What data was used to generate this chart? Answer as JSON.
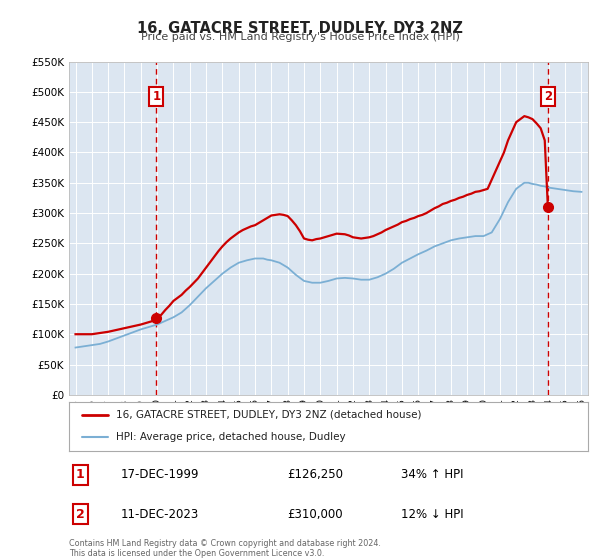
{
  "title": "16, GATACRE STREET, DUDLEY, DY3 2NZ",
  "subtitle": "Price paid vs. HM Land Registry's House Price Index (HPI)",
  "background_color": "#ffffff",
  "plot_bg_color": "#dce6f1",
  "grid_color": "#ffffff",
  "ylim": [
    0,
    550000
  ],
  "xlim_start": 1994.6,
  "xlim_end": 2026.4,
  "yticks": [
    0,
    50000,
    100000,
    150000,
    200000,
    250000,
    300000,
    350000,
    400000,
    450000,
    500000,
    550000
  ],
  "ytick_labels": [
    "£0",
    "£50K",
    "£100K",
    "£150K",
    "£200K",
    "£250K",
    "£300K",
    "£350K",
    "£400K",
    "£450K",
    "£500K",
    "£550K"
  ],
  "xticks": [
    1995,
    1996,
    1997,
    1998,
    1999,
    2000,
    2001,
    2002,
    2003,
    2004,
    2005,
    2006,
    2007,
    2008,
    2009,
    2010,
    2011,
    2012,
    2013,
    2014,
    2015,
    2016,
    2017,
    2018,
    2019,
    2020,
    2021,
    2022,
    2023,
    2024,
    2025,
    2026
  ],
  "red_line_label": "16, GATACRE STREET, DUDLEY, DY3 2NZ (detached house)",
  "blue_line_label": "HPI: Average price, detached house, Dudley",
  "point1_x": 1999.96,
  "point1_y": 126250,
  "point1_label": "1",
  "point1_date": "17-DEC-1999",
  "point1_price": "£126,250",
  "point1_hpi": "34% ↑ HPI",
  "point2_x": 2023.94,
  "point2_y": 310000,
  "point2_label": "2",
  "point2_date": "11-DEC-2023",
  "point2_price": "£310,000",
  "point2_hpi": "12% ↓ HPI",
  "vline1_x": 1999.96,
  "vline2_x": 2023.94,
  "red_color": "#cc0000",
  "blue_color": "#7bafd4",
  "dot_color": "#cc0000",
  "vline_color": "#cc0000",
  "footnote": "Contains HM Land Registry data © Crown copyright and database right 2024.\nThis data is licensed under the Open Government Licence v3.0.",
  "red_x": [
    1995.0,
    1995.25,
    1995.5,
    1995.75,
    1996.0,
    1996.25,
    1996.5,
    1996.75,
    1997.0,
    1997.25,
    1997.5,
    1997.75,
    1998.0,
    1998.25,
    1998.5,
    1998.75,
    1999.0,
    1999.25,
    1999.5,
    1999.75,
    1999.96,
    2000.25,
    2000.5,
    2000.75,
    2001.0,
    2001.25,
    2001.5,
    2001.75,
    2002.0,
    2002.25,
    2002.5,
    2002.75,
    2003.0,
    2003.25,
    2003.5,
    2003.75,
    2004.0,
    2004.25,
    2004.5,
    2004.75,
    2005.0,
    2005.25,
    2005.5,
    2005.75,
    2006.0,
    2006.25,
    2006.5,
    2006.75,
    2007.0,
    2007.25,
    2007.5,
    2007.75,
    2008.0,
    2008.25,
    2008.5,
    2008.75,
    2009.0,
    2009.25,
    2009.5,
    2009.75,
    2010.0,
    2010.25,
    2010.5,
    2010.75,
    2011.0,
    2011.25,
    2011.5,
    2011.75,
    2012.0,
    2012.25,
    2012.5,
    2012.75,
    2013.0,
    2013.25,
    2013.5,
    2013.75,
    2014.0,
    2014.25,
    2014.5,
    2014.75,
    2015.0,
    2015.25,
    2015.5,
    2015.75,
    2016.0,
    2016.25,
    2016.5,
    2016.75,
    2017.0,
    2017.25,
    2017.5,
    2017.75,
    2018.0,
    2018.25,
    2018.5,
    2018.75,
    2019.0,
    2019.25,
    2019.5,
    2019.75,
    2020.0,
    2020.25,
    2020.5,
    2020.75,
    2021.0,
    2021.25,
    2021.5,
    2021.75,
    2022.0,
    2022.25,
    2022.5,
    2022.75,
    2023.0,
    2023.25,
    2023.5,
    2023.75,
    2023.94
  ],
  "red_y": [
    100000,
    100000,
    100000,
    100000,
    100000,
    101000,
    102000,
    103000,
    104000,
    105500,
    107000,
    108500,
    110000,
    111500,
    113000,
    114500,
    116000,
    118000,
    120000,
    122000,
    126250,
    132000,
    140000,
    147000,
    155000,
    160000,
    165000,
    172000,
    178000,
    185000,
    192000,
    201000,
    210000,
    219000,
    228000,
    237000,
    245000,
    252000,
    258000,
    263000,
    268000,
    272000,
    275000,
    278000,
    280000,
    284000,
    288000,
    292000,
    296000,
    297000,
    298000,
    297000,
    295000,
    288000,
    280000,
    270000,
    258000,
    256000,
    255000,
    257000,
    258000,
    260000,
    262000,
    264000,
    266000,
    265500,
    265000,
    263000,
    260000,
    259000,
    258000,
    259000,
    260000,
    262000,
    265000,
    268000,
    272000,
    275000,
    278000,
    281000,
    285000,
    287000,
    290000,
    292000,
    295000,
    297000,
    300000,
    304000,
    308000,
    311000,
    315000,
    317000,
    320000,
    322000,
    325000,
    327000,
    330000,
    332000,
    335000,
    336000,
    338000,
    340000,
    355000,
    370000,
    385000,
    400000,
    420000,
    435000,
    450000,
    455000,
    460000,
    458000,
    455000,
    448000,
    440000,
    420000,
    310000
  ],
  "blue_x": [
    1995.0,
    1995.25,
    1995.5,
    1995.75,
    1996.0,
    1996.25,
    1996.5,
    1996.75,
    1997.0,
    1997.25,
    1997.5,
    1997.75,
    1998.0,
    1998.25,
    1998.5,
    1998.75,
    1999.0,
    1999.25,
    1999.5,
    1999.75,
    2000.0,
    2000.25,
    2000.5,
    2000.75,
    2001.0,
    2001.25,
    2001.5,
    2001.75,
    2002.0,
    2002.25,
    2002.5,
    2002.75,
    2003.0,
    2003.25,
    2003.5,
    2003.75,
    2004.0,
    2004.25,
    2004.5,
    2004.75,
    2005.0,
    2005.25,
    2005.5,
    2005.75,
    2006.0,
    2006.25,
    2006.5,
    2006.75,
    2007.0,
    2007.25,
    2007.5,
    2007.75,
    2008.0,
    2008.25,
    2008.5,
    2008.75,
    2009.0,
    2009.25,
    2009.5,
    2009.75,
    2010.0,
    2010.25,
    2010.5,
    2010.75,
    2011.0,
    2011.25,
    2011.5,
    2011.75,
    2012.0,
    2012.25,
    2012.5,
    2012.75,
    2013.0,
    2013.25,
    2013.5,
    2013.75,
    2014.0,
    2014.25,
    2014.5,
    2014.75,
    2015.0,
    2015.25,
    2015.5,
    2015.75,
    2016.0,
    2016.25,
    2016.5,
    2016.75,
    2017.0,
    2017.25,
    2017.5,
    2017.75,
    2018.0,
    2018.25,
    2018.5,
    2018.75,
    2019.0,
    2019.25,
    2019.5,
    2019.75,
    2020.0,
    2020.25,
    2020.5,
    2020.75,
    2021.0,
    2021.25,
    2021.5,
    2021.75,
    2022.0,
    2022.25,
    2022.5,
    2022.75,
    2023.0,
    2023.25,
    2023.5,
    2023.75,
    2024.0,
    2024.25,
    2024.5,
    2024.75,
    2025.0,
    2025.25,
    2025.5,
    2025.75,
    2026.0
  ],
  "blue_y": [
    78000,
    79000,
    80000,
    81000,
    82000,
    83000,
    84000,
    86000,
    88000,
    90500,
    93000,
    95500,
    98000,
    100500,
    103000,
    105500,
    108000,
    110000,
    112000,
    114000,
    116000,
    119000,
    122000,
    125000,
    128000,
    132000,
    136000,
    142000,
    148000,
    155000,
    162000,
    169000,
    176000,
    182000,
    188000,
    194000,
    200000,
    205000,
    210000,
    214000,
    218000,
    220000,
    222000,
    223500,
    225000,
    225000,
    225000,
    223000,
    222000,
    220000,
    218000,
    214000,
    210000,
    204000,
    198000,
    193000,
    188000,
    186500,
    185000,
    185000,
    185000,
    186500,
    188000,
    190000,
    192000,
    192500,
    193000,
    192500,
    192000,
    191000,
    190000,
    190000,
    190000,
    192000,
    194000,
    197000,
    200000,
    204000,
    208000,
    213000,
    218000,
    221500,
    225000,
    228500,
    232000,
    235000,
    238000,
    241500,
    245000,
    247500,
    250000,
    252500,
    255000,
    256500,
    258000,
    259000,
    260000,
    261000,
    262000,
    262000,
    262000,
    265000,
    268000,
    279000,
    290000,
    304000,
    318000,
    329000,
    340000,
    345000,
    350000,
    350000,
    348000,
    347000,
    345000,
    344000,
    342000,
    341000,
    340000,
    339000,
    338000,
    337000,
    336000,
    335500,
    335000
  ]
}
